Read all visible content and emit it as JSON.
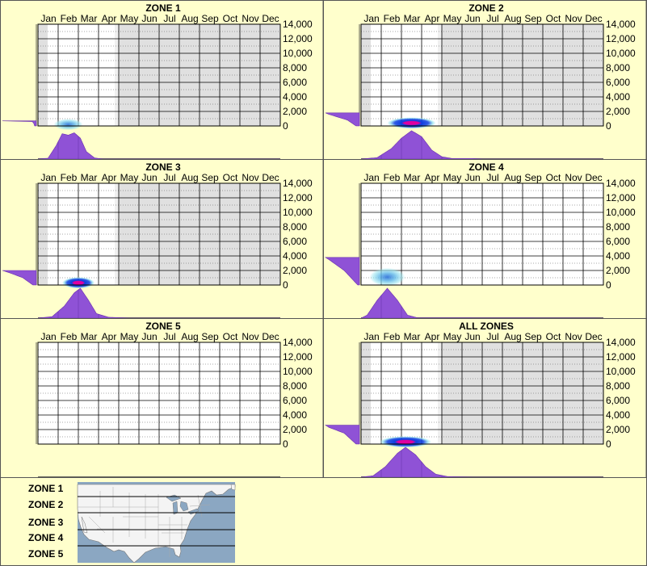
{
  "chart_data": {
    "type": "heatmap",
    "months": [
      "Jan",
      "Feb",
      "Mar",
      "Apr",
      "May",
      "Jun",
      "Jul",
      "Aug",
      "Sep",
      "Oct",
      "Nov",
      "Dec"
    ],
    "y_ticks": [
      "14,000",
      "12,000",
      "10,000",
      "8,000",
      "6,000",
      "4,000",
      "2,000",
      "0"
    ],
    "ylim": [
      0,
      14000
    ],
    "grid": true,
    "panels": [
      {
        "title": "ZONE 1",
        "range_months": [
          0,
          4
        ],
        "hot": {
          "month": 1.5,
          "elev": 200,
          "sm": 0.45,
          "se": 180,
          "peak": 0.6
        },
        "month_profile": [
          [
            0,
            0
          ],
          [
            0.5,
            0.03
          ],
          [
            0.9,
            0.45
          ],
          [
            1.2,
            0.85
          ],
          [
            1.5,
            0.8
          ],
          [
            1.8,
            0.88
          ],
          [
            2.1,
            0.7
          ],
          [
            2.4,
            0.25
          ],
          [
            2.8,
            0.04
          ],
          [
            3.2,
            0.0
          ]
        ],
        "elev_profile": [
          [
            0,
            0.05
          ],
          [
            400,
            0.08
          ],
          [
            600,
            0.12
          ],
          [
            700,
            1.0
          ]
        ]
      },
      {
        "title": "ZONE 2",
        "range_months": [
          0,
          4
        ],
        "hot": {
          "month": 2.5,
          "elev": 400,
          "sm": 0.75,
          "se": 450,
          "peak": 1.0
        },
        "month_profile": [
          [
            0,
            0
          ],
          [
            0.8,
            0.05
          ],
          [
            1.5,
            0.35
          ],
          [
            2.0,
            0.7
          ],
          [
            2.5,
            0.95
          ],
          [
            3.0,
            0.75
          ],
          [
            3.5,
            0.3
          ],
          [
            4.0,
            0.08
          ],
          [
            4.5,
            0.02
          ],
          [
            5.5,
            0.02
          ],
          [
            6.0,
            0.0
          ],
          [
            12,
            0
          ]
        ],
        "elev_profile": [
          [
            0,
            0.1
          ],
          [
            800,
            0.35
          ],
          [
            1600,
            0.9
          ],
          [
            1800,
            1.0
          ]
        ]
      },
      {
        "title": "ZONE 3",
        "range_months": [
          0,
          4
        ],
        "hot": {
          "month": 2.0,
          "elev": 300,
          "sm": 0.5,
          "se": 380,
          "peak": 1.0
        },
        "month_profile": [
          [
            0,
            0
          ],
          [
            0.7,
            0.05
          ],
          [
            1.3,
            0.4
          ],
          [
            1.8,
            0.85
          ],
          [
            2.1,
            1.0
          ],
          [
            2.5,
            0.6
          ],
          [
            2.9,
            0.15
          ],
          [
            3.5,
            0.03
          ],
          [
            4.5,
            0.0
          ],
          [
            12,
            0
          ]
        ],
        "elev_profile": [
          [
            0,
            0.1
          ],
          [
            1000,
            0.4
          ],
          [
            1700,
            0.8
          ],
          [
            2000,
            1.0
          ]
        ]
      },
      {
        "title": "ZONE 4",
        "range_months": null,
        "hot": {
          "month": 1.3,
          "elev": 1100,
          "sm": 0.55,
          "se": 900,
          "peak": 0.35
        },
        "month_profile": [
          [
            0,
            0
          ],
          [
            0.3,
            0.1
          ],
          [
            0.8,
            0.6
          ],
          [
            1.3,
            1.0
          ],
          [
            1.8,
            0.6
          ],
          [
            2.3,
            0.1
          ],
          [
            2.8,
            0.01
          ],
          [
            12,
            0
          ]
        ],
        "elev_profile": [
          [
            0,
            0.05
          ],
          [
            2000,
            0.45
          ],
          [
            3500,
            0.9
          ],
          [
            3800,
            1.0
          ]
        ]
      },
      {
        "title": "ZONE 5",
        "range_months": null,
        "hot": null,
        "month_profile": null,
        "elev_profile": null
      },
      {
        "title": "ALL ZONES",
        "range_months": [
          0,
          4
        ],
        "hot": {
          "month": 2.2,
          "elev": 300,
          "sm": 0.8,
          "se": 420,
          "peak": 1.0
        },
        "month_profile": [
          [
            0,
            0
          ],
          [
            0.6,
            0.05
          ],
          [
            1.2,
            0.35
          ],
          [
            1.8,
            0.8
          ],
          [
            2.2,
            1.0
          ],
          [
            2.7,
            0.75
          ],
          [
            3.2,
            0.35
          ],
          [
            3.7,
            0.1
          ],
          [
            4.3,
            0.02
          ],
          [
            5.5,
            0.0
          ],
          [
            12,
            0
          ]
        ],
        "elev_profile": [
          [
            0,
            0.1
          ],
          [
            1500,
            0.45
          ],
          [
            2300,
            0.9
          ],
          [
            2600,
            1.0
          ]
        ]
      }
    ]
  },
  "legend": {
    "zones": [
      "ZONE 1",
      "ZONE 2",
      "ZONE 3",
      "ZONE 4",
      "ZONE 5"
    ]
  },
  "colors": {
    "background": "#ffffcc",
    "plot_bg": "#ffffff",
    "shaded": "#e0e0e0",
    "purple": "#8f52d6",
    "heat_outer": "#9ee7f0",
    "heat_mid": "#0d3fe0",
    "heat_core": "#e000a0",
    "map_water": "#8ba7c2",
    "map_land": "#f4f4f4"
  }
}
